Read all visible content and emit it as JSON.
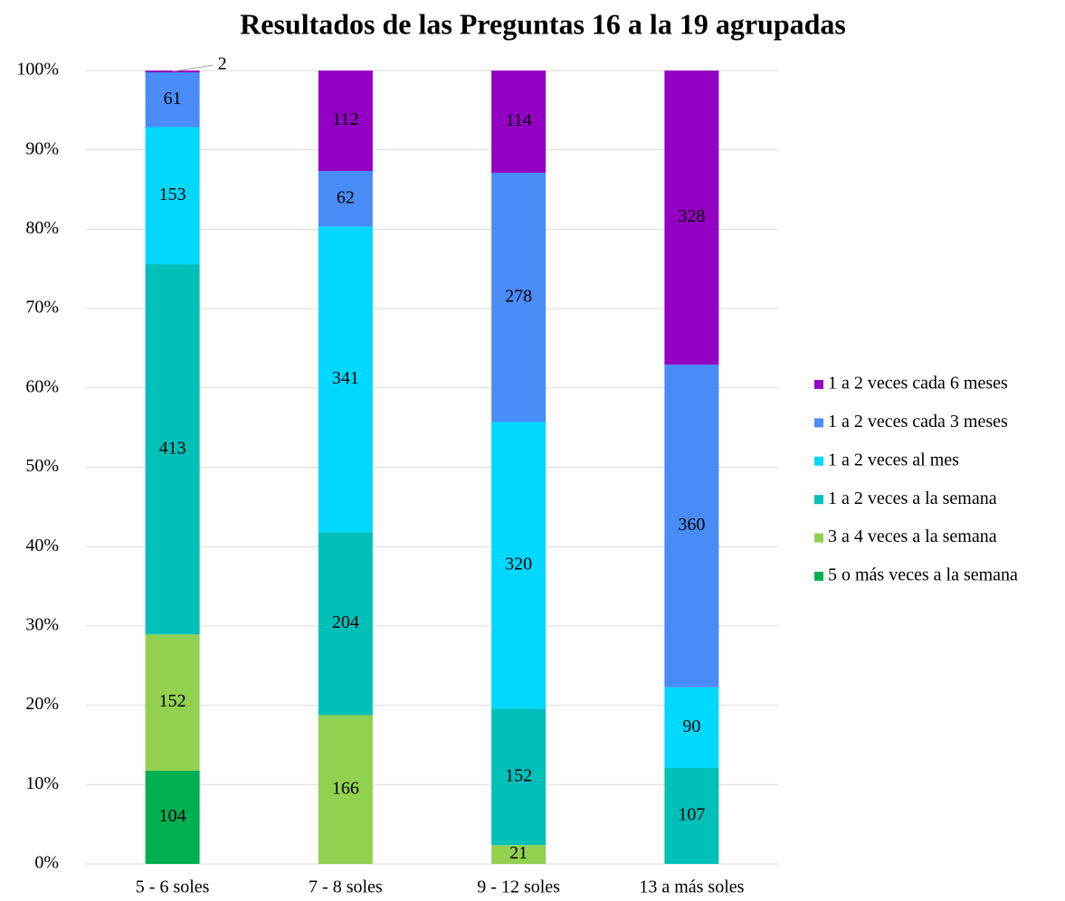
{
  "chart_data": {
    "type": "bar",
    "stacked": "percent",
    "title": "Resultados de las Preguntas 16 a la 19 agrupadas",
    "categories": [
      "5 - 6 soles",
      "7 - 8 soles",
      "9 - 12 soles",
      "13 a más soles"
    ],
    "series": [
      {
        "name": "5 o más veces a la semana",
        "color": "#00b050",
        "values": [
          104,
          null,
          null,
          null
        ]
      },
      {
        "name": "3 a 4 veces a la semana",
        "color": "#92d050",
        "values": [
          152,
          166,
          21,
          null
        ]
      },
      {
        "name": "1 a 2 veces a la semana",
        "color": "#00c0b8",
        "values": [
          413,
          204,
          152,
          107
        ]
      },
      {
        "name": "1 a 2 veces al mes",
        "color": "#00d8ff",
        "values": [
          153,
          341,
          320,
          90
        ]
      },
      {
        "name": "1 a 2 veces cada 3 meses",
        "color": "#4a8cf5",
        "values": [
          61,
          62,
          278,
          360
        ]
      },
      {
        "name": "1 a 2 veces cada 6 meses",
        "color": "#9300c4",
        "values": [
          2,
          112,
          114,
          328
        ]
      }
    ],
    "ylim": [
      0,
      100
    ],
    "yticks": [
      {
        "value": 0,
        "label": "0%"
      },
      {
        "value": 10,
        "label": "10%"
      },
      {
        "value": 20,
        "label": "20%"
      },
      {
        "value": 30,
        "label": "30%"
      },
      {
        "value": 40,
        "label": "40%"
      },
      {
        "value": 50,
        "label": "50%"
      },
      {
        "value": 60,
        "label": "60%"
      },
      {
        "value": 70,
        "label": "70%"
      },
      {
        "value": 80,
        "label": "80%"
      },
      {
        "value": 90,
        "label": "90%"
      },
      {
        "value": 100,
        "label": "100%"
      }
    ],
    "grid": true,
    "legend": "right"
  }
}
